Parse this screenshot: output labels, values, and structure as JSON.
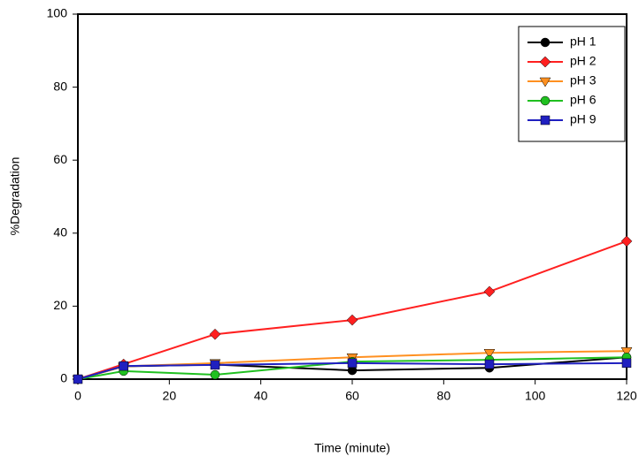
{
  "chart_data": {
    "type": "line",
    "x_label": "Time (minute)",
    "y_label": "%Degradation",
    "x": [
      0,
      10,
      30,
      60,
      90,
      120
    ],
    "series": [
      {
        "name": "pH 1",
        "color": "#000000",
        "marker": "circle",
        "values": [
          0,
          3.5,
          4,
          2.4,
          3.1,
          6
        ]
      },
      {
        "name": "pH 2",
        "color": "#ff2020",
        "marker": "diamond",
        "values": [
          0,
          4.1,
          12.3,
          16.2,
          24,
          37.8
        ]
      },
      {
        "name": "pH 3",
        "color": "#ff9020",
        "marker": "triangle-down",
        "values": [
          0,
          3.5,
          4.4,
          6,
          7.2,
          7.7
        ]
      },
      {
        "name": "pH 6",
        "color": "#20c020",
        "marker": "circle",
        "values": [
          0,
          2.2,
          1.2,
          4.8,
          5.3,
          6
        ]
      },
      {
        "name": "pH 9",
        "color": "#2020c0",
        "marker": "square",
        "values": [
          0,
          3.6,
          3.9,
          4.4,
          4.1,
          4.4
        ]
      }
    ],
    "xlim": [
      0,
      120
    ],
    "xticks": [
      0,
      20,
      40,
      60,
      80,
      100,
      120
    ],
    "ylim": [
      0,
      100
    ],
    "yticks": [
      0,
      20,
      40,
      60,
      80,
      100
    ],
    "grid": false,
    "legend": "upper right"
  }
}
